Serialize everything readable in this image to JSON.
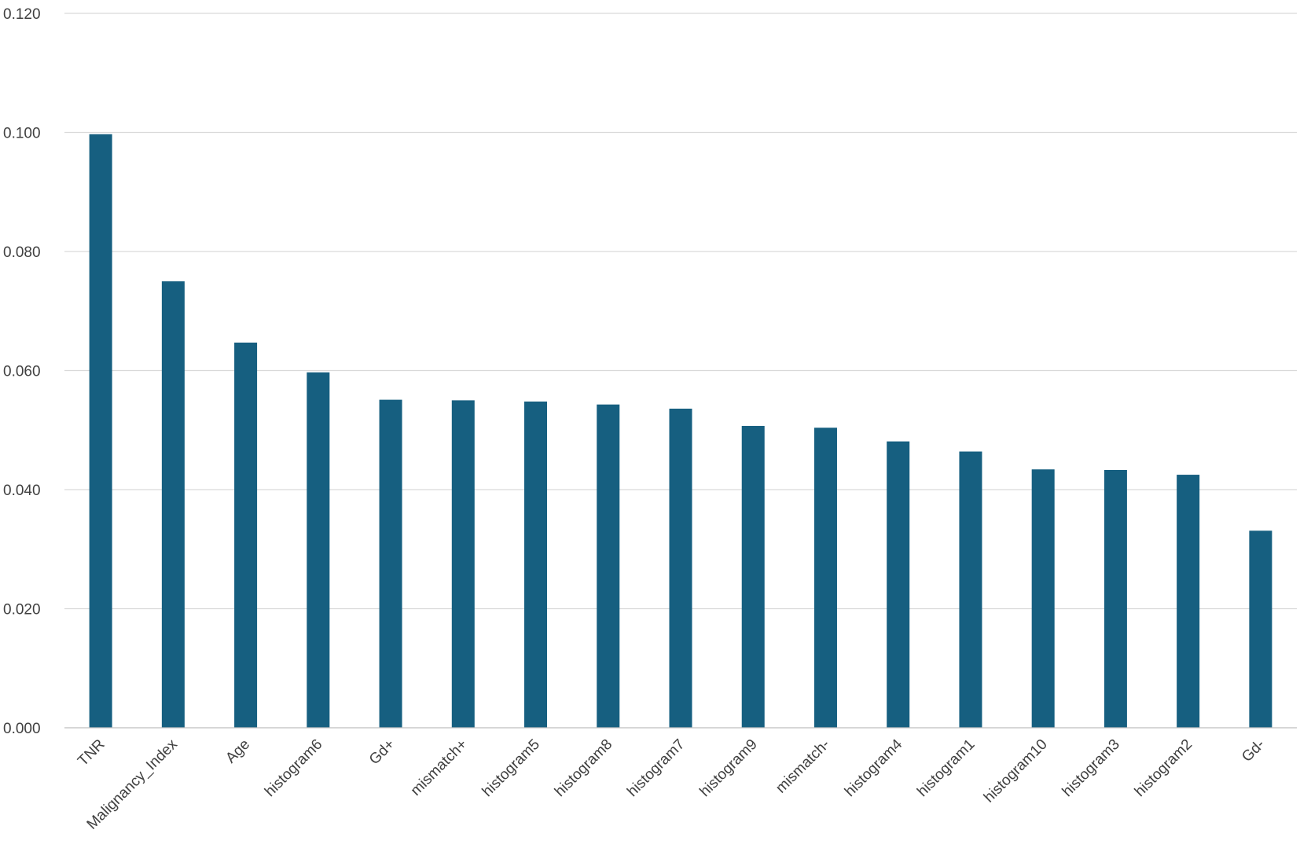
{
  "chart_data": {
    "type": "bar",
    "title": "",
    "xlabel": "",
    "ylabel": "",
    "ylim": [
      0,
      0.12
    ],
    "yticks": [
      "0.000",
      "0.020",
      "0.040",
      "0.060",
      "0.080",
      "0.100",
      "0.120"
    ],
    "grid": true,
    "legend": "none",
    "bar_color": "#165f80",
    "categories": [
      "TNR",
      "Malignancy_Index",
      "Age",
      "histogram6",
      "Gd+",
      "mismatch+",
      "histogram5",
      "histogram8",
      "histogram7",
      "histogram9",
      "mismatch-",
      "histogram4",
      "histogram1",
      "histogram10",
      "histogram3",
      "histogram2",
      "Gd-"
    ],
    "values": [
      0.0997,
      0.075,
      0.0647,
      0.0597,
      0.0551,
      0.055,
      0.0548,
      0.0543,
      0.0536,
      0.0507,
      0.0504,
      0.0481,
      0.0464,
      0.0434,
      0.0433,
      0.0425,
      0.0331
    ]
  }
}
